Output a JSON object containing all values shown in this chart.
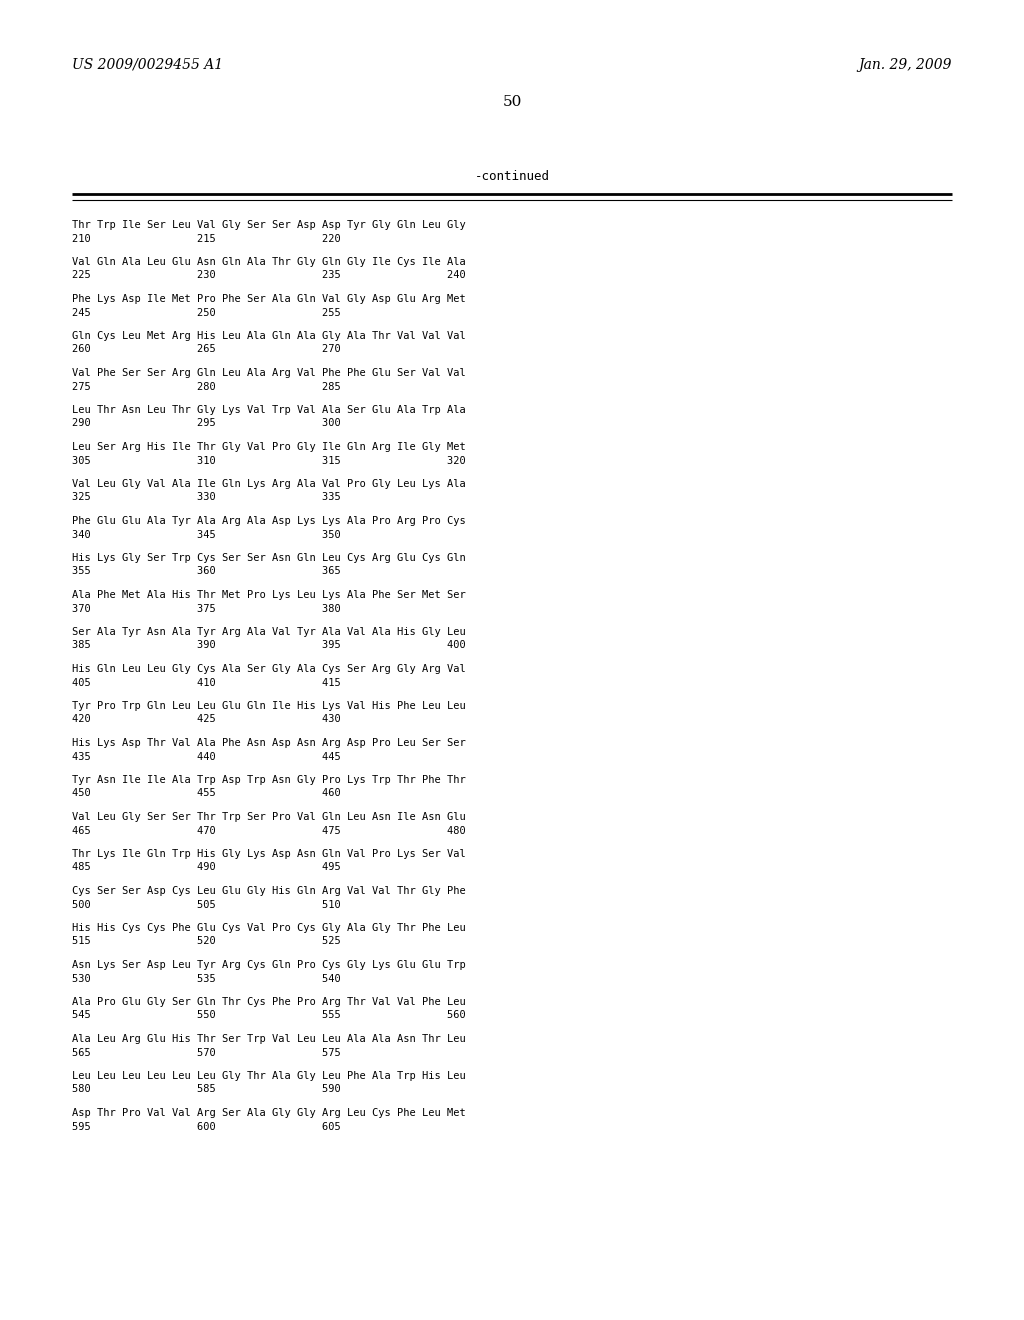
{
  "header_left": "US 2009/0029455 A1",
  "header_right": "Jan. 29, 2009",
  "page_number": "50",
  "continued_label": "-continued",
  "background_color": "#ffffff",
  "text_color": "#000000",
  "sequence_blocks": [
    [
      "Thr Trp Ile Ser Leu Val Gly Ser Ser Asp Asp Tyr Gly Gln Leu Gly",
      "210                 215                 220"
    ],
    [
      "Val Gln Ala Leu Glu Asn Gln Ala Thr Gly Gln Gly Ile Cys Ile Ala",
      "225                 230                 235                 240"
    ],
    [
      "Phe Lys Asp Ile Met Pro Phe Ser Ala Gln Val Gly Asp Glu Arg Met",
      "245                 250                 255"
    ],
    [
      "Gln Cys Leu Met Arg His Leu Ala Gln Ala Gly Ala Thr Val Val Val",
      "260                 265                 270"
    ],
    [
      "Val Phe Ser Ser Arg Gln Leu Ala Arg Val Phe Phe Glu Ser Val Val",
      "275                 280                 285"
    ],
    [
      "Leu Thr Asn Leu Thr Gly Lys Val Trp Val Ala Ser Glu Ala Trp Ala",
      "290                 295                 300"
    ],
    [
      "Leu Ser Arg His Ile Thr Gly Val Pro Gly Ile Gln Arg Ile Gly Met",
      "305                 310                 315                 320"
    ],
    [
      "Val Leu Gly Val Ala Ile Gln Lys Arg Ala Val Pro Gly Leu Lys Ala",
      "325                 330                 335"
    ],
    [
      "Phe Glu Glu Ala Tyr Ala Arg Ala Asp Lys Lys Ala Pro Arg Pro Cys",
      "340                 345                 350"
    ],
    [
      "His Lys Gly Ser Trp Cys Ser Ser Asn Gln Leu Cys Arg Glu Cys Gln",
      "355                 360                 365"
    ],
    [
      "Ala Phe Met Ala His Thr Met Pro Lys Leu Lys Ala Phe Ser Met Ser",
      "370                 375                 380"
    ],
    [
      "Ser Ala Tyr Asn Ala Tyr Arg Ala Val Tyr Ala Val Ala His Gly Leu",
      "385                 390                 395                 400"
    ],
    [
      "His Gln Leu Leu Gly Cys Ala Ser Gly Ala Cys Ser Arg Gly Arg Val",
      "405                 410                 415"
    ],
    [
      "Tyr Pro Trp Gln Leu Leu Glu Gln Ile His Lys Val His Phe Leu Leu",
      "420                 425                 430"
    ],
    [
      "His Lys Asp Thr Val Ala Phe Asn Asp Asn Arg Asp Pro Leu Ser Ser",
      "435                 440                 445"
    ],
    [
      "Tyr Asn Ile Ile Ala Trp Asp Trp Asn Gly Pro Lys Trp Thr Phe Thr",
      "450                 455                 460"
    ],
    [
      "Val Leu Gly Ser Ser Thr Trp Ser Pro Val Gln Leu Asn Ile Asn Glu",
      "465                 470                 475                 480"
    ],
    [
      "Thr Lys Ile Gln Trp His Gly Lys Asp Asn Gln Val Pro Lys Ser Val",
      "485                 490                 495"
    ],
    [
      "Cys Ser Ser Asp Cys Leu Glu Gly His Gln Arg Val Val Thr Gly Phe",
      "500                 505                 510"
    ],
    [
      "His His Cys Cys Phe Glu Cys Val Pro Cys Gly Ala Gly Thr Phe Leu",
      "515                 520                 525"
    ],
    [
      "Asn Lys Ser Asp Leu Tyr Arg Cys Gln Pro Cys Gly Lys Glu Glu Trp",
      "530                 535                 540"
    ],
    [
      "Ala Pro Glu Gly Ser Gln Thr Cys Phe Pro Arg Thr Val Val Phe Leu",
      "545                 550                 555                 560"
    ],
    [
      "Ala Leu Arg Glu His Thr Ser Trp Val Leu Leu Ala Ala Asn Thr Leu",
      "565                 570                 575"
    ],
    [
      "Leu Leu Leu Leu Leu Leu Gly Thr Ala Gly Leu Phe Ala Trp His Leu",
      "580                 585                 590"
    ],
    [
      "Asp Thr Pro Val Val Arg Ser Ala Gly Gly Arg Leu Cys Phe Leu Met",
      "595                 600                 605"
    ]
  ]
}
